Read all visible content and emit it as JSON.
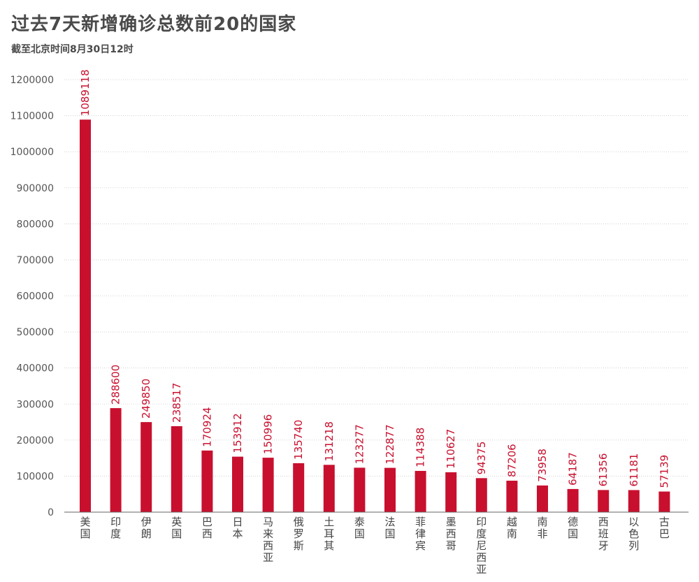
{
  "title": "过去7天新增确诊总数前20的国家",
  "subtitle": "截至北京时间8月30日12时",
  "colors": {
    "bar": "#c8102e",
    "value_label": "#c8102e",
    "text": "#4a4a4a"
  },
  "chart_data": {
    "type": "bar",
    "title": "过去7天新增确诊总数前20的国家",
    "subtitle": "截至北京时间8月30日12时",
    "xlabel": "",
    "ylabel": "",
    "ylim": [
      0,
      1200000
    ],
    "yticks": [
      0,
      100000,
      200000,
      300000,
      400000,
      500000,
      600000,
      700000,
      800000,
      900000,
      1000000,
      1100000,
      1200000
    ],
    "grid": true,
    "categories": [
      "美国",
      "印度",
      "伊朗",
      "英国",
      "巴西",
      "日本",
      "马来西亚",
      "俄罗斯",
      "土耳其",
      "泰国",
      "法国",
      "菲律宾",
      "墨西哥",
      "印度尼西亚",
      "越南",
      "南非",
      "德国",
      "西班牙",
      "以色列",
      "古巴"
    ],
    "values": [
      1089118,
      288600,
      249850,
      238517,
      170924,
      153912,
      150996,
      135740,
      131218,
      123277,
      122877,
      114388,
      110627,
      94375,
      87206,
      73958,
      64187,
      61356,
      61181,
      57139
    ]
  }
}
